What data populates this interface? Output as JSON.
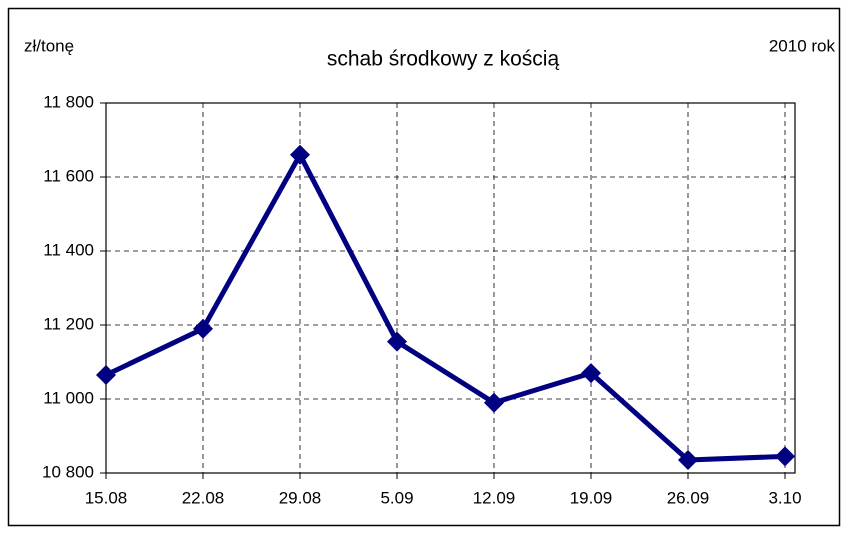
{
  "chart_data": {
    "type": "line",
    "title": "schab środkowy z kością",
    "unit_label": "zł/tonę",
    "year_label": "2010 rok",
    "categories": [
      "15.08",
      "22.08",
      "29.08",
      "5.09",
      "12.09",
      "19.09",
      "26.09",
      "3.10"
    ],
    "series": [
      {
        "name": "schab środkowy z kością",
        "color": "#000080",
        "values": [
          11065,
          11190,
          11660,
          11155,
          10990,
          11070,
          10835,
          10845
        ]
      }
    ],
    "ylim": [
      10800,
      11800
    ],
    "yticks": [
      {
        "value": 10800,
        "label": "10 800"
      },
      {
        "value": 11000,
        "label": "11 000"
      },
      {
        "value": 11200,
        "label": "11 200"
      },
      {
        "value": 11400,
        "label": "11 400"
      },
      {
        "value": 11600,
        "label": "11 600"
      },
      {
        "value": 11800,
        "label": "11 800"
      }
    ],
    "grid": true,
    "marker": "diamond"
  }
}
